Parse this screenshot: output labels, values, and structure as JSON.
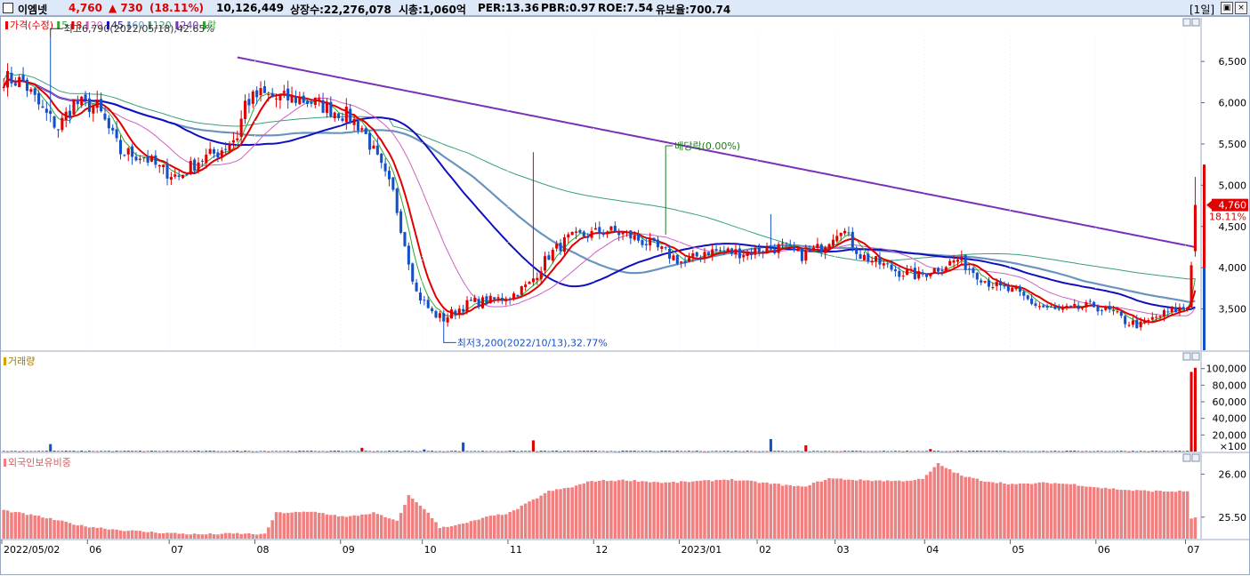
{
  "header": {
    "name": "이엠넷",
    "price": "4,760",
    "change": "▲ 730",
    "change_pct": "(18.11%)",
    "volume": "10,126,449",
    "shares": "상장수:22,276,078",
    "mcap": "시총:1,060억",
    "per": "PER:13.36",
    "pbr": "PBR:0.97",
    "roe": "ROE:7.54",
    "float": "유보율:700.74",
    "period": "[1일]"
  },
  "colors": {
    "up": "#e00000",
    "down": "#1450c8",
    "ma5": "#2ea82e",
    "ma8": "#e00000",
    "ma20": "#d060c0",
    "ma45": "#1010c0",
    "ma60": "#6a94c0",
    "ma120": "#3aa078",
    "ma240": "#7a30b8",
    "foreign": "#f08080"
  },
  "chart_data": [
    {
      "type": "candlestick",
      "legend": [
        {
          "label": "가격(수정)",
          "color": "#e00000"
        },
        {
          "label": "5",
          "color": "#2ea82e"
        },
        {
          "label": "8",
          "color": "#e00000"
        },
        {
          "label": "20",
          "color": "#d060c0"
        },
        {
          "label": "45",
          "color": "#1010c0"
        },
        {
          "label": "60",
          "color": "#6a94c0"
        },
        {
          "label": "120",
          "color": "#3aa078"
        },
        {
          "label": "240",
          "color": "#7a30b8"
        },
        {
          "label": "락",
          "color": "#2ea82e"
        }
      ],
      "ylim": [
        3000,
        6900
      ],
      "yticks": [
        3500,
        4000,
        4500,
        5000,
        5500,
        6000,
        6500
      ],
      "ytick_labels": [
        "3,500",
        "4,000",
        "4,500",
        "5,000",
        "5,500",
        "6,000",
        "6,500"
      ],
      "x_months": [
        "2022/05/02",
        "06",
        "07",
        "08",
        "09",
        "10",
        "11",
        "12",
        "2023/01",
        "02",
        "03",
        "04",
        "05",
        "06",
        "07"
      ],
      "x_month_index": [
        0,
        22,
        43,
        65,
        87,
        108,
        130,
        152,
        174,
        194,
        214,
        237,
        259,
        281,
        304
      ],
      "annotations": {
        "high": {
          "text": "최고6,790(2022/05/18),42.65%",
          "index": 12,
          "value": 6790
        },
        "low": {
          "text": "최저3,200(2022/10/13),32.77%",
          "index": 113,
          "value": 3200
        },
        "dividend": {
          "text": "배당락(0.00%)",
          "index": 170,
          "value": 4400
        }
      },
      "current": {
        "value": 4760,
        "label": "4,760",
        "pct": "18.11%"
      },
      "anchors": [
        [
          0,
          6300
        ],
        [
          5,
          6250
        ],
        [
          10,
          5900
        ],
        [
          14,
          5700
        ],
        [
          18,
          6000
        ],
        [
          24,
          5950
        ],
        [
          30,
          5400
        ],
        [
          36,
          5350
        ],
        [
          40,
          5200
        ],
        [
          45,
          5100
        ],
        [
          50,
          5300
        ],
        [
          55,
          5400
        ],
        [
          60,
          5600
        ],
        [
          62,
          6000
        ],
        [
          66,
          6100
        ],
        [
          70,
          6050
        ],
        [
          75,
          6050
        ],
        [
          80,
          6000
        ],
        [
          85,
          5900
        ],
        [
          88,
          5850
        ],
        [
          92,
          5700
        ],
        [
          96,
          5300
        ],
        [
          100,
          4900
        ],
        [
          103,
          4300
        ],
        [
          106,
          3700
        ],
        [
          110,
          3450
        ],
        [
          113,
          3380
        ],
        [
          116,
          3480
        ],
        [
          120,
          3580
        ],
        [
          125,
          3600
        ],
        [
          130,
          3650
        ],
        [
          135,
          3800
        ],
        [
          140,
          4150
        ],
        [
          145,
          4350
        ],
        [
          150,
          4400
        ],
        [
          155,
          4450
        ],
        [
          160,
          4400
        ],
        [
          165,
          4300
        ],
        [
          170,
          4180
        ],
        [
          175,
          4050
        ],
        [
          180,
          4200
        ],
        [
          185,
          4200
        ],
        [
          190,
          4180
        ],
        [
          195,
          4220
        ],
        [
          200,
          4250
        ],
        [
          205,
          4150
        ],
        [
          210,
          4250
        ],
        [
          215,
          4500
        ],
        [
          220,
          4150
        ],
        [
          225,
          4050
        ],
        [
          230,
          3950
        ],
        [
          235,
          3900
        ],
        [
          240,
          4000
        ],
        [
          245,
          4100
        ],
        [
          248,
          4000
        ],
        [
          252,
          3850
        ],
        [
          256,
          3750
        ],
        [
          260,
          3700
        ],
        [
          265,
          3550
        ],
        [
          270,
          3480
        ],
        [
          275,
          3500
        ],
        [
          280,
          3540
        ],
        [
          285,
          3450
        ],
        [
          288,
          3350
        ],
        [
          292,
          3300
        ],
        [
          296,
          3400
        ],
        [
          300,
          3480
        ],
        [
          304,
          3520
        ],
        [
          305,
          4030
        ],
        [
          306,
          4760
        ]
      ]
    },
    {
      "type": "bar",
      "title": "거래량",
      "ylim": [
        0,
        105000
      ],
      "yticks": [
        20000,
        40000,
        60000,
        80000,
        100000
      ],
      "ytick_labels": [
        "20,000",
        "40,000",
        "60,000",
        "80,000",
        "100,000"
      ],
      "unit_label": "×100",
      "spikes": [
        [
          12,
          9000
        ],
        [
          92,
          4500
        ],
        [
          108,
          2500
        ],
        [
          118,
          11000
        ],
        [
          136,
          13500
        ],
        [
          197,
          15000
        ],
        [
          206,
          7500
        ],
        [
          238,
          3000
        ],
        [
          305,
          96000
        ],
        [
          306,
          101000
        ]
      ],
      "base": 800
    },
    {
      "type": "bar",
      "title": "외국인보유비중",
      "ylim": [
        25.25,
        26.2
      ],
      "yticks": [
        25.5,
        26.0
      ],
      "ytick_labels": [
        "25.50",
        "26.00"
      ],
      "anchors": [
        [
          0,
          25.58
        ],
        [
          10,
          25.5
        ],
        [
          20,
          25.4
        ],
        [
          30,
          25.35
        ],
        [
          40,
          25.32
        ],
        [
          50,
          25.3
        ],
        [
          60,
          25.31
        ],
        [
          67,
          25.3
        ],
        [
          70,
          25.55
        ],
        [
          80,
          25.56
        ],
        [
          88,
          25.5
        ],
        [
          95,
          25.55
        ],
        [
          101,
          25.45
        ],
        [
          104,
          25.75
        ],
        [
          108,
          25.6
        ],
        [
          112,
          25.38
        ],
        [
          118,
          25.42
        ],
        [
          124,
          25.5
        ],
        [
          130,
          25.55
        ],
        [
          140,
          25.8
        ],
        [
          146,
          25.85
        ],
        [
          151,
          25.92
        ],
        [
          160,
          25.93
        ],
        [
          170,
          25.9
        ],
        [
          180,
          25.92
        ],
        [
          186,
          25.94
        ],
        [
          195,
          25.9
        ],
        [
          205,
          25.85
        ],
        [
          212,
          25.95
        ],
        [
          220,
          25.93
        ],
        [
          230,
          25.92
        ],
        [
          236,
          25.94
        ],
        [
          240,
          26.12
        ],
        [
          246,
          25.98
        ],
        [
          252,
          25.92
        ],
        [
          260,
          25.88
        ],
        [
          268,
          25.9
        ],
        [
          275,
          25.88
        ],
        [
          282,
          25.84
        ],
        [
          290,
          25.81
        ],
        [
          298,
          25.8
        ],
        [
          304,
          25.8
        ],
        [
          305,
          25.49
        ],
        [
          306,
          25.49
        ]
      ]
    }
  ]
}
